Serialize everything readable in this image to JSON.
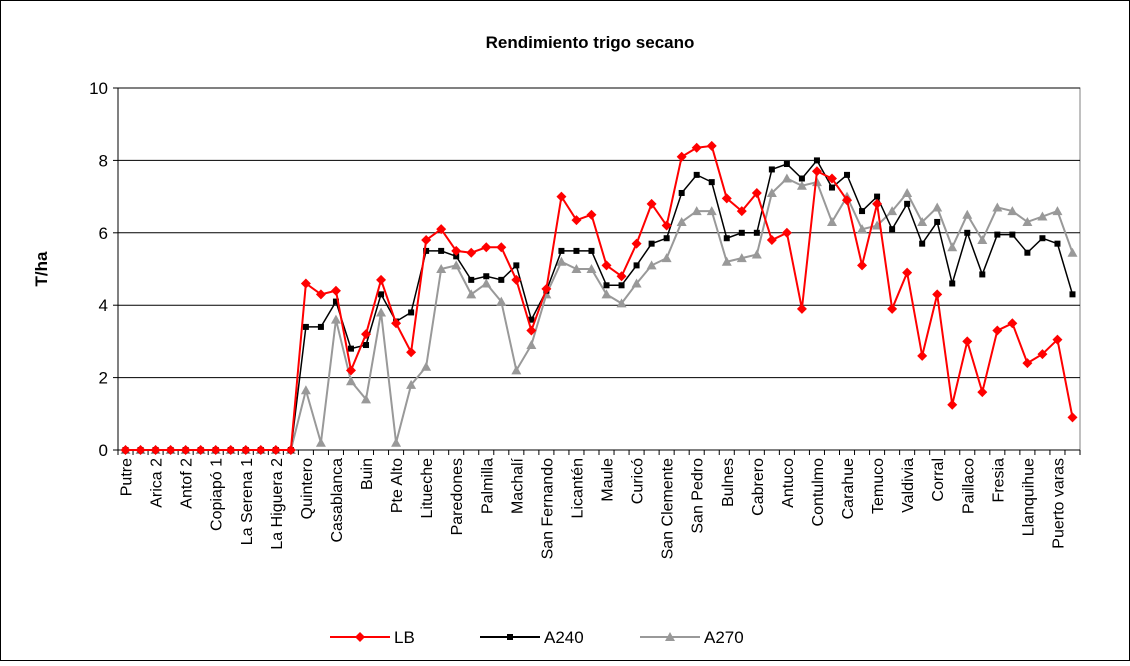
{
  "chart_data": {
    "type": "line",
    "title": "Rendimiento trigo secano",
    "y_label": "T/ha",
    "categories": [
      "Putre",
      null,
      "Arica 2",
      null,
      "Antof 2",
      null,
      "Copiapó 1",
      null,
      "La Serena 1",
      null,
      "La Higuera 2",
      null,
      "Quintero",
      null,
      "Casablanca",
      null,
      "Buin",
      null,
      "Pte Alto",
      null,
      "Litueche",
      null,
      "Paredones",
      null,
      "Palmilla",
      null,
      "Machalí",
      null,
      "San Fernando",
      null,
      "Licantén",
      null,
      "Maule",
      null,
      "Curicó",
      null,
      "San Clemente",
      null,
      "San Pedro",
      null,
      "Bulnes",
      null,
      "Cabrero",
      null,
      "Antuco",
      null,
      "Contulmo",
      null,
      "Carahue",
      null,
      "Temuco",
      null,
      "Valdivia",
      null,
      "Corral",
      null,
      "Paillaco",
      null,
      "Fresia",
      null,
      "Llanquihue",
      null,
      "Puerto varas",
      null
    ],
    "series": [
      {
        "name": "LB",
        "color": "#ff0000",
        "marker": "diamond",
        "values": [
          0,
          0,
          0,
          0,
          0,
          0,
          0,
          0,
          0,
          0,
          0,
          0,
          4.6,
          4.3,
          4.4,
          2.2,
          3.2,
          4.7,
          3.5,
          2.7,
          5.8,
          6.1,
          5.5,
          5.45,
          5.6,
          5.6,
          4.7,
          3.3,
          4.45,
          7.0,
          6.35,
          6.5,
          5.1,
          4.8,
          5.7,
          6.8,
          6.2,
          8.1,
          8.35,
          8.4,
          6.95,
          6.6,
          7.1,
          5.8,
          6.0,
          3.9,
          7.7,
          7.5,
          6.9,
          5.1,
          6.8,
          3.9,
          4.9,
          2.6,
          4.3,
          1.25,
          3.0,
          1.6,
          3.3,
          3.5,
          2.4,
          2.65,
          3.05,
          0.9
        ]
      },
      {
        "name": "A240",
        "color": "#000000",
        "marker": "square",
        "values": [
          0,
          0,
          0,
          0,
          0,
          0,
          0,
          0,
          0,
          0,
          0,
          0,
          3.4,
          3.4,
          4.1,
          2.8,
          2.9,
          4.3,
          3.55,
          3.8,
          5.5,
          5.5,
          5.35,
          4.7,
          4.8,
          4.7,
          5.1,
          3.6,
          4.4,
          5.5,
          5.5,
          5.5,
          4.55,
          4.55,
          5.1,
          5.7,
          5.85,
          7.1,
          7.6,
          7.4,
          5.85,
          6.0,
          6.0,
          7.75,
          7.9,
          7.5,
          8.0,
          7.25,
          7.6,
          6.6,
          7.0,
          6.1,
          6.8,
          5.7,
          6.3,
          4.6,
          6.0,
          4.85,
          5.95,
          5.95,
          5.45,
          5.85,
          5.7,
          4.3
        ]
      },
      {
        "name": "A270",
        "color": "#999999",
        "marker": "triangle",
        "values": [
          0,
          0,
          0,
          0,
          0,
          0,
          0,
          0,
          0,
          0,
          0,
          0,
          1.65,
          0.2,
          3.6,
          1.9,
          1.4,
          3.8,
          0.2,
          1.8,
          2.3,
          5.0,
          5.1,
          4.3,
          4.6,
          4.1,
          2.2,
          2.9,
          4.3,
          5.2,
          5.0,
          5.0,
          4.3,
          4.05,
          4.6,
          5.1,
          5.3,
          6.3,
          6.6,
          6.6,
          5.2,
          5.3,
          5.4,
          7.1,
          7.5,
          7.3,
          7.4,
          6.3,
          7.0,
          6.1,
          6.2,
          6.6,
          7.1,
          6.3,
          6.7,
          5.6,
          6.5,
          5.8,
          6.7,
          6.6,
          6.3,
          6.45,
          6.6,
          5.45
        ]
      }
    ],
    "ylim": [
      0,
      10
    ],
    "yticks": [
      0,
      2,
      4,
      6,
      8,
      10
    ],
    "grid": true,
    "legend": "bottom"
  }
}
